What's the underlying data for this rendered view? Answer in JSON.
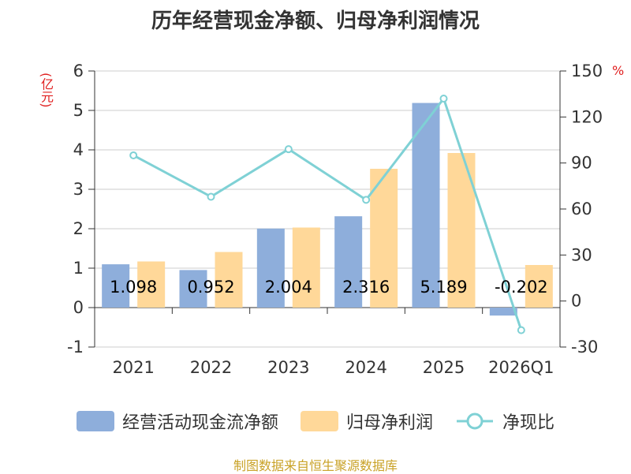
{
  "title": "历年经营现金净额、归母净利润情况",
  "unit_left": "(亿元)",
  "unit_right": "%",
  "source": "制图数据来自恒生聚源数据库",
  "colors": {
    "operating_cash": "#8eaedb",
    "net_profit": "#ffd899",
    "ratio_line": "#7fd1d5",
    "unit_text": "#e02020",
    "source_text": "#c9a227"
  },
  "chart_data": {
    "type": "bar",
    "categories": [
      "2021",
      "2022",
      "2023",
      "2024",
      "2025",
      "2026Q1"
    ],
    "series": [
      {
        "name": "经营活动现金流净额",
        "type": "bar",
        "axis": "left",
        "values": [
          1.098,
          0.952,
          2.004,
          2.316,
          5.189,
          -0.202
        ]
      },
      {
        "name": "归母净利润",
        "type": "bar",
        "axis": "left",
        "values": [
          1.17,
          1.41,
          2.03,
          3.52,
          3.92,
          1.08
        ]
      },
      {
        "name": "净现比",
        "type": "line",
        "axis": "right",
        "values": [
          95,
          68,
          99,
          66,
          132,
          -19
        ]
      }
    ],
    "data_labels": [
      "1.098",
      "0.952",
      "2.004",
      "2.316",
      "5.189",
      "-0.202"
    ],
    "ylim_left": [
      -1,
      6
    ],
    "yticks_left": [
      -1,
      0,
      1,
      2,
      3,
      4,
      5,
      6
    ],
    "ylim_right": [
      -30,
      150
    ],
    "yticks_right": [
      -30,
      0,
      30,
      60,
      90,
      120,
      150
    ],
    "grid": true,
    "legend_position": "bottom"
  }
}
